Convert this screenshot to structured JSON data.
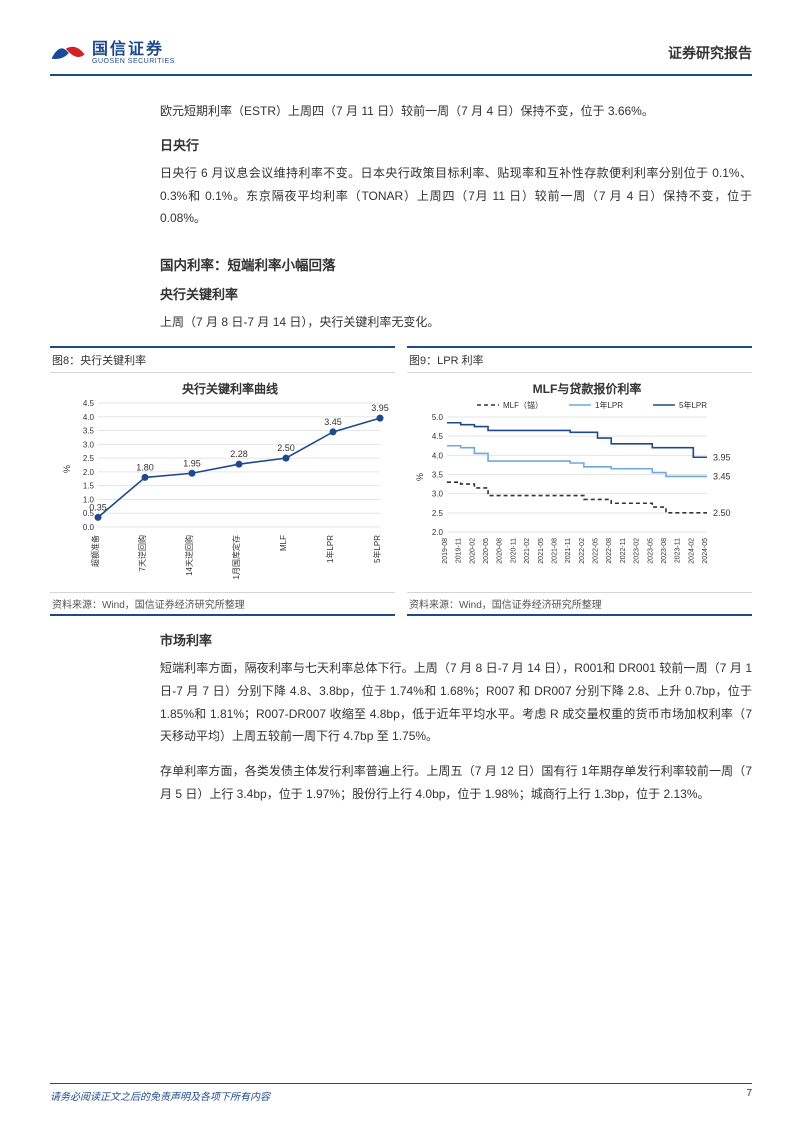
{
  "header": {
    "logo_cn": "国信证券",
    "logo_en": "GUOSEN SECURITIES",
    "right": "证券研究报告"
  },
  "p1": "欧元短期利率（ESTR）上周四（7 月 11 日）较前一周（7 月 4 日）保持不变，位于 3.66%。",
  "h_boj": "日央行",
  "p2": "日央行 6 月议息会议维持利率不变。日本央行政策目标利率、贴现率和互补性存款便利利率分别位于 0.1%、0.3%和 0.1%。东京隔夜平均利率（TONAR）上周四（7月 11 日）较前一周（7 月 4 日）保持不变，位于 0.08%。",
  "h_domestic": "国内利率：短端利率小幅回落",
  "h_pboc": "央行关键利率",
  "p3": "上周（7 月 8 日-7 月 14 日），央行关键利率无变化。",
  "chart8": {
    "caption": "图8：央行关键利率",
    "title": "央行关键利率曲线",
    "type": "line-marker",
    "ylabel": "%",
    "ylim": [
      0,
      4.5
    ],
    "ytick_step": 0.5,
    "grid_color": "#e5e5e5",
    "line_color": "#1e4a8c",
    "marker_color": "#1e4a8c",
    "categories": [
      "超额准备",
      "7天逆回购",
      "14天逆回购",
      "1月国库定存",
      "MLF",
      "1年LPR",
      "5年LPR"
    ],
    "values": [
      0.35,
      1.8,
      1.95,
      2.28,
      2.5,
      3.45,
      3.95
    ],
    "label_fontsize": 8,
    "source": "资料来源：Wind，国信证券经济研究所整理"
  },
  "chart9": {
    "caption": "图9：LPR 利率",
    "title": "MLF与贷款报价利率",
    "type": "step-line",
    "ylabel": "%",
    "ylim": [
      2.0,
      5.0
    ],
    "ytick_step": 0.5,
    "grid_color": "#e5e5e5",
    "legend": [
      "MLF（锚）",
      "1年LPR",
      "5年LPR"
    ],
    "x_dates": [
      "2019-08",
      "2019-11",
      "2020-02",
      "2020-05",
      "2020-08",
      "2020-11",
      "2021-02",
      "2021-05",
      "2021-08",
      "2021-11",
      "2022-02",
      "2022-05",
      "2022-08",
      "2022-11",
      "2023-02",
      "2023-05",
      "2023-08",
      "2023-11",
      "2024-02",
      "2024-05"
    ],
    "series": {
      "mlf": {
        "color": "#333333",
        "dash": "4,3",
        "values": [
          3.3,
          3.25,
          3.15,
          2.95,
          2.95,
          2.95,
          2.95,
          2.95,
          2.95,
          2.95,
          2.85,
          2.85,
          2.75,
          2.75,
          2.75,
          2.65,
          2.5,
          2.5,
          2.5,
          2.5
        ],
        "end_label": "2.50"
      },
      "lpr1": {
        "color": "#6fa8dc",
        "dash": "none",
        "values": [
          4.25,
          4.2,
          4.05,
          3.85,
          3.85,
          3.85,
          3.85,
          3.85,
          3.85,
          3.8,
          3.7,
          3.7,
          3.65,
          3.65,
          3.65,
          3.55,
          3.45,
          3.45,
          3.45,
          3.45
        ],
        "end_label": "3.45"
      },
      "lpr5": {
        "color": "#1e4a8c",
        "dash": "none",
        "values": [
          4.85,
          4.8,
          4.75,
          4.65,
          4.65,
          4.65,
          4.65,
          4.65,
          4.65,
          4.6,
          4.6,
          4.45,
          4.3,
          4.3,
          4.3,
          4.2,
          4.2,
          4.2,
          3.95,
          3.95
        ],
        "end_label": "3.95"
      }
    },
    "label_fontsize": 7,
    "source": "资料来源：Wind，国信证券经济研究所整理"
  },
  "h_market": "市场利率",
  "p4": "短端利率方面，隔夜利率与七天利率总体下行。上周（7 月 8 日-7 月 14 日），R001和 DR001 较前一周（7 月 1 日-7 月 7 日）分别下降 4.8、3.8bp，位于 1.74%和 1.68%；R007 和 DR007 分别下降 2.8、上升 0.7bp，位于 1.85%和 1.81%；R007-DR007 收缩至 4.8bp，低于近年平均水平。考虑 R 成交量权重的货币市场加权利率（7 天移动平均）上周五较前一周下行 4.7bp 至 1.75%。",
  "p5": "存单利率方面，各类发债主体发行利率普遍上行。上周五（7 月 12 日）国有行 1年期存单发行利率较前一周（7 月 5 日）上行 3.4bp，位于 1.97%；股份行上行 4.0bp，位于 1.98%；城商行上行 1.3bp，位于 2.13%。",
  "footer": {
    "disclaimer": "请务必阅读正文之后的免责声明及各项下所有内容",
    "page": "7"
  }
}
